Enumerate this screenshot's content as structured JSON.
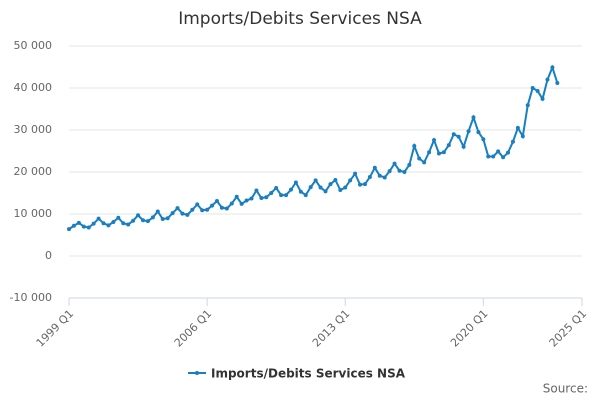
{
  "chart_data": {
    "type": "line",
    "title": "Imports/Debits Services NSA",
    "source": "Source:",
    "x": [
      1999,
      1999.25,
      1999.5,
      1999.75,
      2000,
      2000.25,
      2000.5,
      2000.75,
      2001,
      2001.25,
      2001.5,
      2001.75,
      2002,
      2002.25,
      2002.5,
      2002.75,
      2003,
      2003.25,
      2003.5,
      2003.75,
      2004,
      2004.25,
      2004.5,
      2004.75,
      2005,
      2005.25,
      2005.5,
      2005.75,
      2006,
      2006.25,
      2006.5,
      2006.75,
      2007,
      2007.25,
      2007.5,
      2007.75,
      2008,
      2008.25,
      2008.5,
      2008.75,
      2009,
      2009.25,
      2009.5,
      2009.75,
      2010,
      2010.25,
      2010.5,
      2010.75,
      2011,
      2011.25,
      2011.5,
      2011.75,
      2012,
      2012.25,
      2012.5,
      2012.75,
      2013,
      2013.25,
      2013.5,
      2013.75,
      2014,
      2014.25,
      2014.5,
      2014.75,
      2015,
      2015.25,
      2015.5,
      2015.75,
      2016,
      2016.25,
      2016.5,
      2016.75,
      2017,
      2017.25,
      2017.5,
      2017.75,
      2018,
      2018.25,
      2018.5,
      2018.75,
      2019,
      2019.25,
      2019.5,
      2019.75,
      2020,
      2020.25,
      2020.5,
      2020.75,
      2021,
      2021.25,
      2021.5,
      2021.75,
      2022,
      2022.25,
      2022.5,
      2022.75,
      2023,
      2023.25,
      2023.5,
      2023.75
    ],
    "series": [
      {
        "name": "Imports/Debits Services NSA",
        "color": "#1a7fc0",
        "values": [
          6400,
          7200,
          7900,
          7000,
          6800,
          7700,
          8900,
          7800,
          7300,
          8100,
          9100,
          7800,
          7500,
          8400,
          9700,
          8500,
          8300,
          9200,
          10600,
          8800,
          9000,
          10200,
          11400,
          10100,
          9800,
          11000,
          12300,
          10900,
          11000,
          12000,
          13100,
          11500,
          11300,
          12500,
          14100,
          12400,
          13200,
          13700,
          15600,
          13800,
          14000,
          15000,
          16200,
          14500,
          14500,
          15800,
          17500,
          15300,
          14500,
          16400,
          18000,
          16300,
          15400,
          17100,
          18100,
          15700,
          16300,
          18000,
          19600,
          17000,
          17100,
          18800,
          21000,
          19100,
          18700,
          20200,
          22000,
          20300,
          20000,
          21700,
          26200,
          23200,
          22300,
          24700,
          27600,
          24400,
          24700,
          26400,
          29000,
          28400,
          26000,
          29700,
          33000,
          29500,
          27800,
          23700,
          23700,
          24900,
          23500,
          24600,
          27200,
          30500,
          28500,
          35900,
          40000,
          39300,
          37400,
          42000,
          44900,
          41200
        ]
      }
    ],
    "xlim": [
      1999,
      2025
    ],
    "xticks": [
      {
        "value": 1999,
        "label": "1999 Q1"
      },
      {
        "value": 2006,
        "label": "2006 Q1"
      },
      {
        "value": 2013,
        "label": "2013 Q1"
      },
      {
        "value": 2020,
        "label": "2020 Q1"
      },
      {
        "value": 2025,
        "label": "2025 Q1"
      }
    ],
    "ylim": [
      -10000,
      50000
    ],
    "yticks": [
      {
        "value": -10000,
        "label": "-10 000"
      },
      0,
      {
        "value": 10000,
        "label": "10 000"
      },
      {
        "value": 20000,
        "label": "20 000"
      },
      {
        "value": 30000,
        "label": "30 000"
      },
      {
        "value": 40000,
        "label": "40 000"
      },
      {
        "value": 50000,
        "label": "50 000"
      }
    ],
    "grid": true,
    "legend": "bottom"
  }
}
